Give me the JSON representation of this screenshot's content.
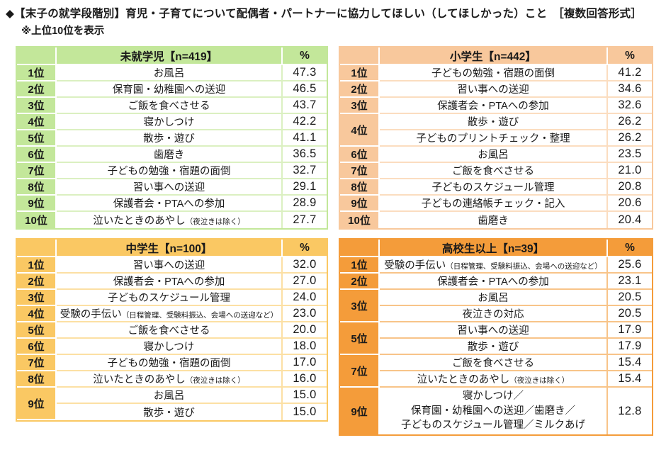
{
  "page": {
    "title": "◆【末子の就学段階別】育児・子育てについて配偶者・パートナーに協力してほしい（してほしかった）こと　［複数回答形式］",
    "subtitle": "※上位10位を表示"
  },
  "colors": {
    "preschool_green": "#c3e79a",
    "elementary_peach": "#f8c89c",
    "junior_high_gold": "#fac863",
    "high_school_orange": "#f49c3a"
  },
  "chart_data": {
    "type": "table",
    "title": "◆【末子の就学段階別】育児・子育てについて配偶者・パートナーに協力してほしい（してほしかった）こと　［複数回答形式］",
    "subtitle": "※上位10位を表示",
    "percent_label": "%",
    "tables": [
      {
        "header": "未就学児【n=419】",
        "percent_label": "%",
        "rows": [
          {
            "rank": "1位",
            "item": "お風呂",
            "pct": "47.3"
          },
          {
            "rank": "2位",
            "item": "保育園・幼稚園への送迎",
            "pct": "46.5"
          },
          {
            "rank": "3位",
            "item": "ご飯を食べさせる",
            "pct": "43.7"
          },
          {
            "rank": "4位",
            "item": "寝かしつけ",
            "pct": "42.2"
          },
          {
            "rank": "5位",
            "item": "散歩・遊び",
            "pct": "41.1"
          },
          {
            "rank": "6位",
            "item": "歯磨き",
            "pct": "36.5"
          },
          {
            "rank": "7位",
            "item": "子どもの勉強・宿題の面倒",
            "pct": "32.7"
          },
          {
            "rank": "8位",
            "item": "習い事への送迎",
            "pct": "29.1"
          },
          {
            "rank": "9位",
            "item": "保護者会・PTAへの参加",
            "pct": "28.9"
          },
          {
            "rank": "10位",
            "item": "泣いたときのあやし",
            "note": "（夜泣きは除く）",
            "pct": "27.7"
          }
        ]
      },
      {
        "header": "小学生【n=442】",
        "percent_label": "%",
        "rows": [
          {
            "rank": "1位",
            "item": "子どもの勉強・宿題の面倒",
            "pct": "41.2"
          },
          {
            "rank": "2位",
            "item": "習い事への送迎",
            "pct": "34.6"
          },
          {
            "rank": "3位",
            "item": "保護者会・PTAへの参加",
            "pct": "32.6"
          },
          {
            "rank": "4位",
            "item": "散歩・遊び",
            "pct": "26.2"
          },
          {
            "item": "子どものプリントチェック・整理",
            "pct": "26.2"
          },
          {
            "rank": "6位",
            "item": "お風呂",
            "pct": "23.5"
          },
          {
            "rank": "7位",
            "item": "ご飯を食べさせる",
            "pct": "21.0"
          },
          {
            "rank": "8位",
            "item": "子どものスケジュール管理",
            "pct": "20.8"
          },
          {
            "rank": "9位",
            "item": "子どもの連絡帳チェック・記入",
            "pct": "20.6"
          },
          {
            "rank": "10位",
            "item": "歯磨き",
            "pct": "20.4"
          }
        ]
      },
      {
        "header": "中学生【n=100】",
        "percent_label": "%",
        "rows": [
          {
            "rank": "1位",
            "item": "習い事への送迎",
            "pct": "32.0"
          },
          {
            "rank": "2位",
            "item": "保護者会・PTAへの参加",
            "pct": "27.0"
          },
          {
            "rank": "3位",
            "item": "子どものスケジュール管理",
            "pct": "24.0"
          },
          {
            "rank": "4位",
            "item": "受験の手伝い",
            "note": "（日程管理、受験料振込、会場への送迎など）",
            "pct": "23.0"
          },
          {
            "rank": "5位",
            "item": "ご飯を食べさせる",
            "pct": "20.0"
          },
          {
            "rank": "6位",
            "item": "寝かしつけ",
            "pct": "18.0"
          },
          {
            "rank": "7位",
            "item": "子どもの勉強・宿題の面倒",
            "pct": "17.0"
          },
          {
            "rank": "8位",
            "item": "泣いたときのあやし",
            "note": "（夜泣きは除く）",
            "pct": "16.0"
          },
          {
            "rank": "9位",
            "item": "お風呂",
            "pct": "15.0"
          },
          {
            "item": "散歩・遊び",
            "pct": "15.0"
          }
        ]
      },
      {
        "header": "高校生以上【n=39】",
        "percent_label": "%",
        "rows": [
          {
            "rank": "1位",
            "item": "受験の手伝い",
            "note": "（日程管理、受験料振込、会場への送迎など）",
            "pct": "25.6"
          },
          {
            "rank": "2位",
            "item": "保護者会・PTAへの参加",
            "pct": "23.1"
          },
          {
            "rank": "3位",
            "item": "お風呂",
            "pct": "20.5"
          },
          {
            "item": "夜泣きの対応",
            "pct": "20.5"
          },
          {
            "rank": "5位",
            "item": "習い事への送迎",
            "pct": "17.9"
          },
          {
            "item": "散歩・遊び",
            "pct": "17.9"
          },
          {
            "rank": "7位",
            "item": "ご飯を食べさせる",
            "pct": "15.4"
          },
          {
            "item": "泣いたときのあやし",
            "note": "（夜泣きは除く）",
            "pct": "15.4"
          },
          {
            "rank": "9位",
            "item": "寝かしつけ／\n保育園・幼稚園への送迎／歯磨き／\n子どものスケジュール管理／ミルクあげ",
            "pct": "12.8"
          }
        ]
      }
    ]
  }
}
